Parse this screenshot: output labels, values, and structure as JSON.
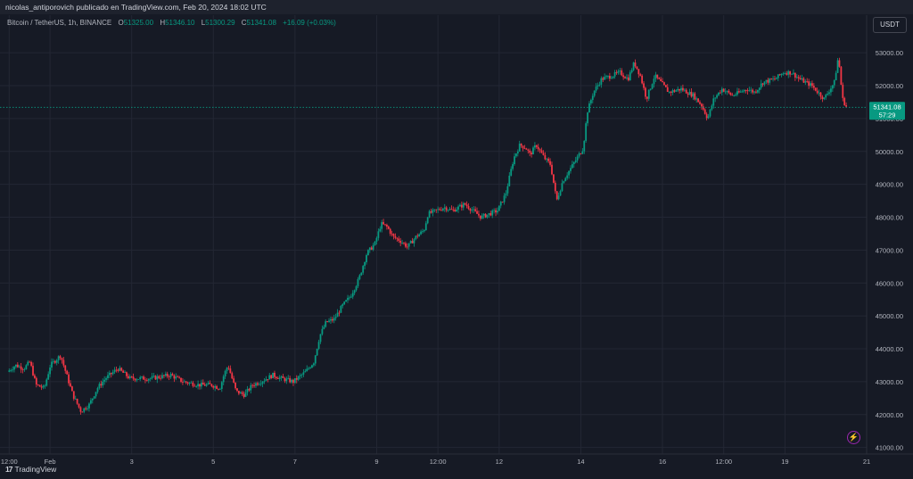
{
  "header": {
    "publisher": "nicolas_antiporovich publicado en TradingView.com, Feb 20, 2024 18:02 UTC"
  },
  "legend": {
    "symbol": "Bitcoin / TetherUS, 1h, BINANCE",
    "o_label": "O",
    "o_value": "51325.00",
    "h_label": "H",
    "h_value": "51346.10",
    "l_label": "L",
    "l_value": "51300.29",
    "c_label": "C",
    "c_value": "51341.08",
    "change": "+16.09 (+0.03%)"
  },
  "toolbar": {
    "currency_button": "USDT"
  },
  "price_badge": {
    "price": "51341.08",
    "countdown": "57:29"
  },
  "footer": {
    "brand": "TradingView",
    "brand_mark": "17"
  },
  "colors": {
    "up": "#089981",
    "down": "#f23645",
    "background": "#161a25",
    "grid": "#232734",
    "text": "#b2b5be",
    "badge": "#089981"
  },
  "icons": {
    "alert": "lightning-bolt-icon",
    "logo": "tradingview-logo-icon"
  },
  "chart_data": {
    "type": "candlestick",
    "title": "Bitcoin / TetherUS, 1h, BINANCE",
    "xlabel": "",
    "ylabel": "",
    "ylim": [
      40800,
      53600
    ],
    "y_ticks": [
      "53000.00",
      "52000.00",
      "51000.00",
      "50000.00",
      "49000.00",
      "48000.00",
      "47000.00",
      "46000.00",
      "45000.00",
      "44000.00",
      "43000.00",
      "42000.00",
      "41000.00"
    ],
    "x_ticks": [
      "12:00",
      "Feb",
      "3",
      "5",
      "7",
      "9",
      "12:00",
      "12",
      "14",
      "16",
      "12:00",
      "19",
      "21"
    ],
    "x_tick_positions": [
      0.0,
      1.0,
      3.0,
      5.0,
      7.0,
      9.0,
      10.5,
      12.0,
      14.0,
      16.0,
      17.5,
      19.0,
      21.0
    ],
    "x_range": [
      -0.05,
      21.0
    ],
    "grid": true,
    "last_price_line": 51341.08,
    "path_days": [
      0,
      0.2,
      0.4,
      0.55,
      0.7,
      0.9,
      1.05,
      1.3,
      1.6,
      1.8,
      2.0,
      2.2,
      2.4,
      2.7,
      3.0,
      3.5,
      4.0,
      4.3,
      4.7,
      5.0,
      5.2,
      5.3,
      5.4,
      5.6,
      5.8,
      6.0,
      6.2,
      6.5,
      6.7,
      7.0,
      7.3,
      7.5,
      7.65,
      7.8,
      8.0,
      8.2,
      8.4,
      8.6,
      8.8,
      9.0,
      9.15,
      9.3,
      9.45,
      9.6,
      9.8,
      10.0,
      10.2,
      10.3,
      10.5,
      10.7,
      10.9,
      11.05,
      11.2,
      11.4,
      11.6,
      11.8,
      12.0,
      12.2,
      12.4,
      12.55,
      12.7,
      12.8,
      12.95,
      13.15,
      13.3,
      13.45,
      13.5,
      13.6,
      13.8,
      13.95,
      14.1,
      14.2,
      14.35,
      14.55,
      14.8,
      15.0,
      15.2,
      15.35,
      15.5,
      15.65,
      15.85,
      16.0,
      16.2,
      16.5,
      16.8,
      17.0,
      17.15,
      17.3,
      17.5,
      17.75,
      17.95,
      18.1,
      18.3,
      18.5,
      18.8,
      19.0,
      19.2,
      19.4,
      19.7,
      19.85,
      20.0,
      20.15,
      20.25,
      20.35,
      20.45,
      20.55,
      20.65
    ],
    "path_prices": [
      43300,
      43500,
      43400,
      43600,
      42900,
      42800,
      43500,
      43800,
      42600,
      42100,
      42300,
      42800,
      43100,
      43400,
      43100,
      43100,
      43200,
      43000,
      42900,
      42900,
      42800,
      43200,
      43500,
      42700,
      42600,
      42900,
      43000,
      43200,
      43100,
      43000,
      43300,
      43600,
      44400,
      44800,
      44900,
      45300,
      45600,
      46100,
      46900,
      47200,
      47800,
      47700,
      47400,
      47300,
      47100,
      47400,
      47600,
      48100,
      48200,
      48300,
      48200,
      48300,
      48400,
      48200,
      48000,
      48100,
      48200,
      48700,
      49800,
      50200,
      50100,
      49900,
      50200,
      49800,
      49600,
      48500,
      48700,
      49100,
      49500,
      49800,
      50100,
      51200,
      51800,
      52200,
      52300,
      52400,
      52200,
      52700,
      52300,
      51600,
      52300,
      52100,
      51800,
      51900,
      51700,
      51400,
      51000,
      51600,
      51900,
      51700,
      51800,
      51900,
      51800,
      52100,
      52200,
      52400,
      52400,
      52200,
      52000,
      51800,
      51600,
      51900,
      52100,
      52900,
      51600,
      51340
    ]
  }
}
